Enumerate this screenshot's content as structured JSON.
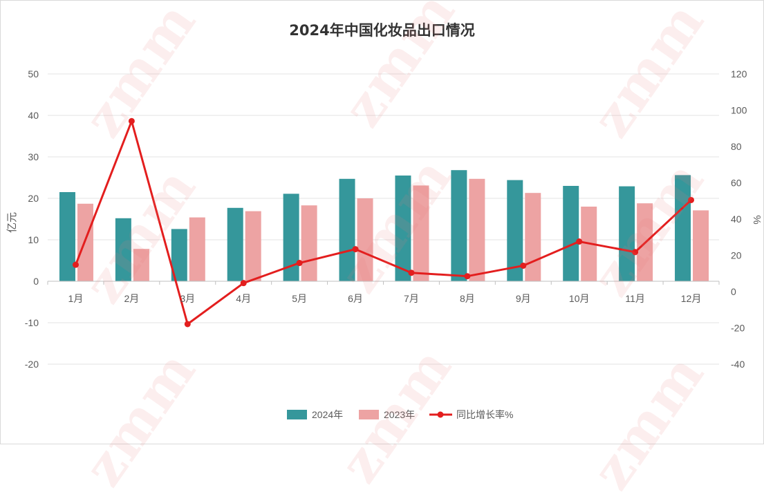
{
  "watermark": "zmm",
  "chart_data": {
    "type": "bar",
    "title": "2024年中国化妆品出口情况",
    "categories": [
      "1月",
      "2月",
      "3月",
      "4月",
      "5月",
      "6月",
      "7月",
      "8月",
      "9月",
      "10月",
      "11月",
      "12月"
    ],
    "series": [
      {
        "name": "2024年",
        "type": "bar",
        "axis": "left",
        "color": "#35979b",
        "values": [
          21.5,
          15.2,
          12.6,
          17.7,
          21.1,
          24.7,
          25.5,
          26.8,
          24.4,
          23.0,
          22.9,
          25.6
        ]
      },
      {
        "name": "2023年",
        "type": "bar",
        "axis": "left",
        "color": "#eda3a3",
        "values": [
          18.7,
          7.8,
          15.4,
          16.9,
          18.3,
          20.0,
          23.1,
          24.7,
          21.3,
          18.0,
          18.8,
          17.1
        ]
      },
      {
        "name": "同比增长率%",
        "type": "line",
        "axis": "right",
        "color": "#e31e1e",
        "values": [
          14.8,
          94.0,
          -17.9,
          4.7,
          15.8,
          23.4,
          10.4,
          8.5,
          14.3,
          27.6,
          21.8,
          50.5
        ]
      }
    ],
    "ylabel": "亿元",
    "ylim": [
      -20,
      50
    ],
    "yticks": [
      50,
      40,
      30,
      20,
      10,
      0,
      -10,
      -20
    ],
    "y2label": "%",
    "y2lim": [
      -40,
      120
    ],
    "y2ticks": [
      120,
      100,
      80,
      60,
      40,
      20,
      0,
      -20,
      -40
    ],
    "grid": true,
    "legend_position": "bottom"
  }
}
